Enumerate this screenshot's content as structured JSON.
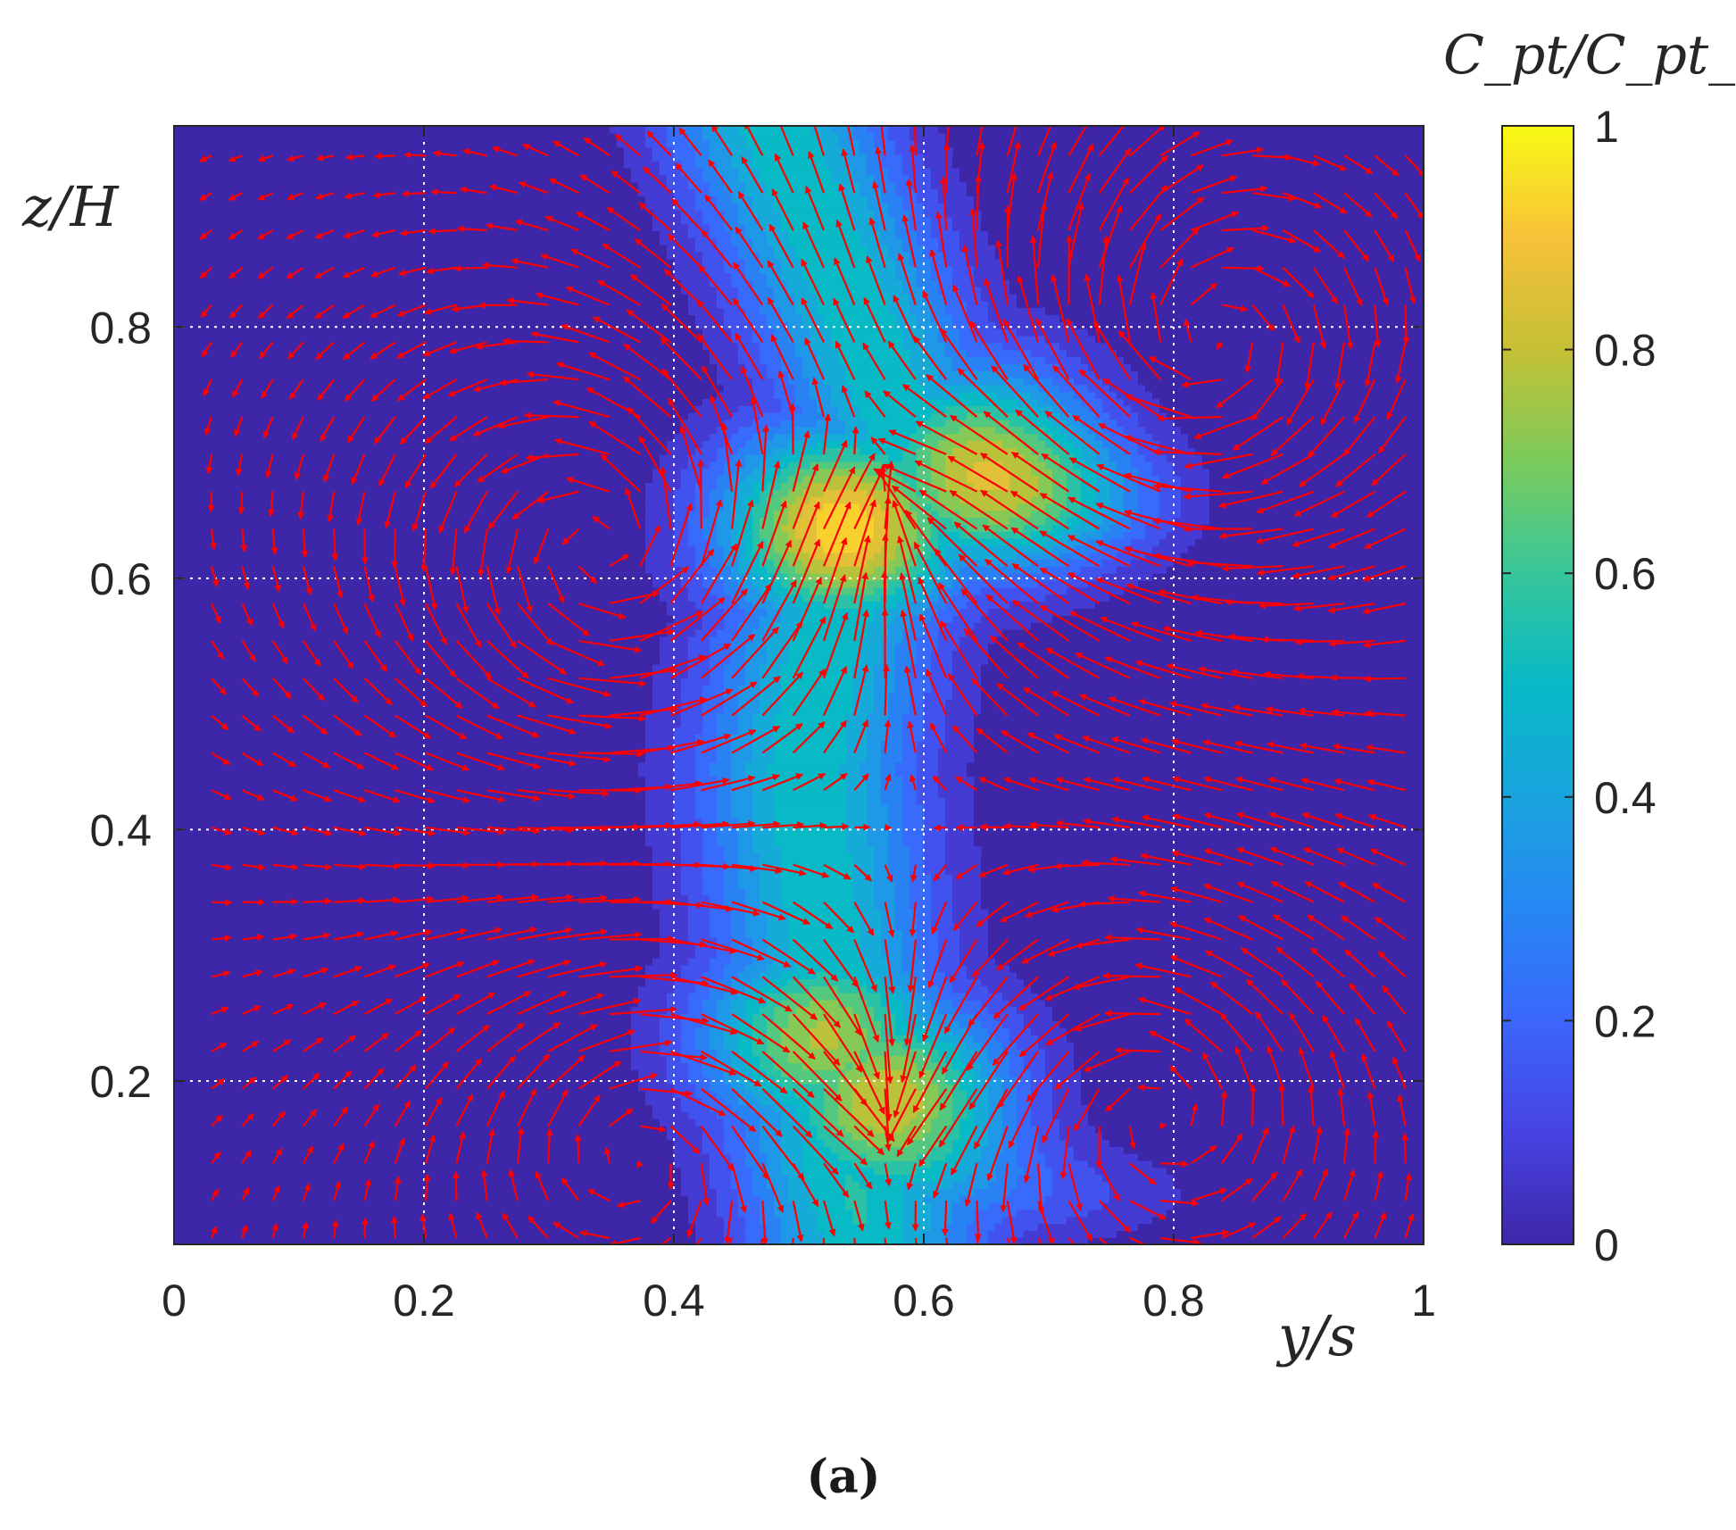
{
  "chart_data": {
    "type": "heatmap",
    "subtype": "filled contour with overlaid velocity vectors (quiver)",
    "xlabel": "y/s",
    "ylabel": "z/H",
    "colorbar_label": "C_pt/C_pt_max",
    "xlim": [
      0,
      1
    ],
    "ylim": [
      0.07,
      0.96
    ],
    "x_ticks": [
      "0",
      "0.2",
      "0.4",
      "0.6",
      "0.8",
      "1"
    ],
    "y_ticks": [
      "0.2",
      "0.4",
      "0.6",
      "0.8"
    ],
    "colorbar_ticks": [
      "0",
      "0.2",
      "0.4",
      "0.6",
      "0.8",
      "1"
    ],
    "clim": [
      0,
      1
    ],
    "colormap": "parula",
    "grid": true,
    "grid_style": "dotted white",
    "vector_color": "#ff0000",
    "caption": "(a)",
    "loss_core_centerline": {
      "z": [
        0.07,
        0.15,
        0.25,
        0.35,
        0.45,
        0.55,
        0.62,
        0.68,
        0.75,
        0.85,
        0.96
      ],
      "y": [
        0.55,
        0.53,
        0.53,
        0.515,
        0.505,
        0.52,
        0.56,
        0.6,
        0.57,
        0.53,
        0.48
      ]
    },
    "peaks": [
      {
        "y": 0.535,
        "z": 0.64,
        "value": 0.98
      },
      {
        "y": 0.64,
        "z": 0.69,
        "value": 0.78
      },
      {
        "y": 0.52,
        "z": 0.235,
        "value": 0.8
      },
      {
        "y": 0.57,
        "z": 0.185,
        "value": 0.85
      }
    ]
  },
  "labels": {
    "x_axis": "y/s",
    "y_axis": "z/H",
    "colorbar": "C_pt/C_pt_max",
    "caption": "(a)"
  }
}
